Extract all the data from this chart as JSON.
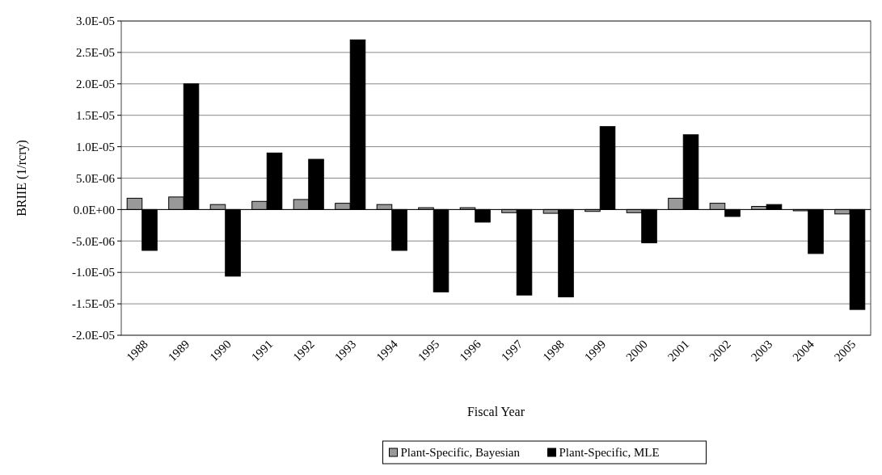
{
  "chart_data": {
    "type": "bar",
    "xlabel": "Fiscal Year",
    "ylabel": "BRIIE (1/rcry)",
    "categories": [
      "1988",
      "1989",
      "1990",
      "1991",
      "1992",
      "1993",
      "1994",
      "1995",
      "1996",
      "1997",
      "1998",
      "1999",
      "2000",
      "2001",
      "2002",
      "2003",
      "2004",
      "2005"
    ],
    "series": [
      {
        "name": "Plant-Specific, Bayesian",
        "color": "#999999",
        "values": [
          1.8e-06,
          2e-06,
          8e-07,
          1.3e-06,
          1.6e-06,
          1e-06,
          8e-07,
          3e-07,
          3e-07,
          -5e-07,
          -6e-07,
          -3e-07,
          -5e-07,
          1.8e-06,
          1e-06,
          5e-07,
          -2e-07,
          -7e-07
        ]
      },
      {
        "name": "Plant-Specific, MLE",
        "color": "#000000",
        "values": [
          -6.5e-06,
          2e-05,
          -1.06e-05,
          9e-06,
          8e-06,
          2.7e-05,
          -6.5e-06,
          -1.31e-05,
          -2e-06,
          -1.36e-05,
          -1.39e-05,
          1.32e-05,
          -5.3e-06,
          1.19e-05,
          -1.1e-06,
          8e-07,
          -7e-06,
          -1.59e-05
        ]
      }
    ],
    "ylim": [
      -2e-05,
      3e-05
    ],
    "yticks": [
      {
        "value": -2e-05,
        "label": "-2.0E-05"
      },
      {
        "value": -1.5e-05,
        "label": "-1.5E-05"
      },
      {
        "value": -1e-05,
        "label": "-1.0E-05"
      },
      {
        "value": -5e-06,
        "label": "-5.0E-06"
      },
      {
        "value": 0,
        "label": "0.0E+00"
      },
      {
        "value": 5e-06,
        "label": "5.0E-06"
      },
      {
        "value": 1e-05,
        "label": "1.0E-05"
      },
      {
        "value": 1.5e-05,
        "label": "1.5E-05"
      },
      {
        "value": 2e-05,
        "label": "2.0E-05"
      },
      {
        "value": 2.5e-05,
        "label": "2.5E-05"
      },
      {
        "value": 3e-05,
        "label": "3.0E-05"
      }
    ],
    "grid": "y",
    "legend": "bottom"
  }
}
